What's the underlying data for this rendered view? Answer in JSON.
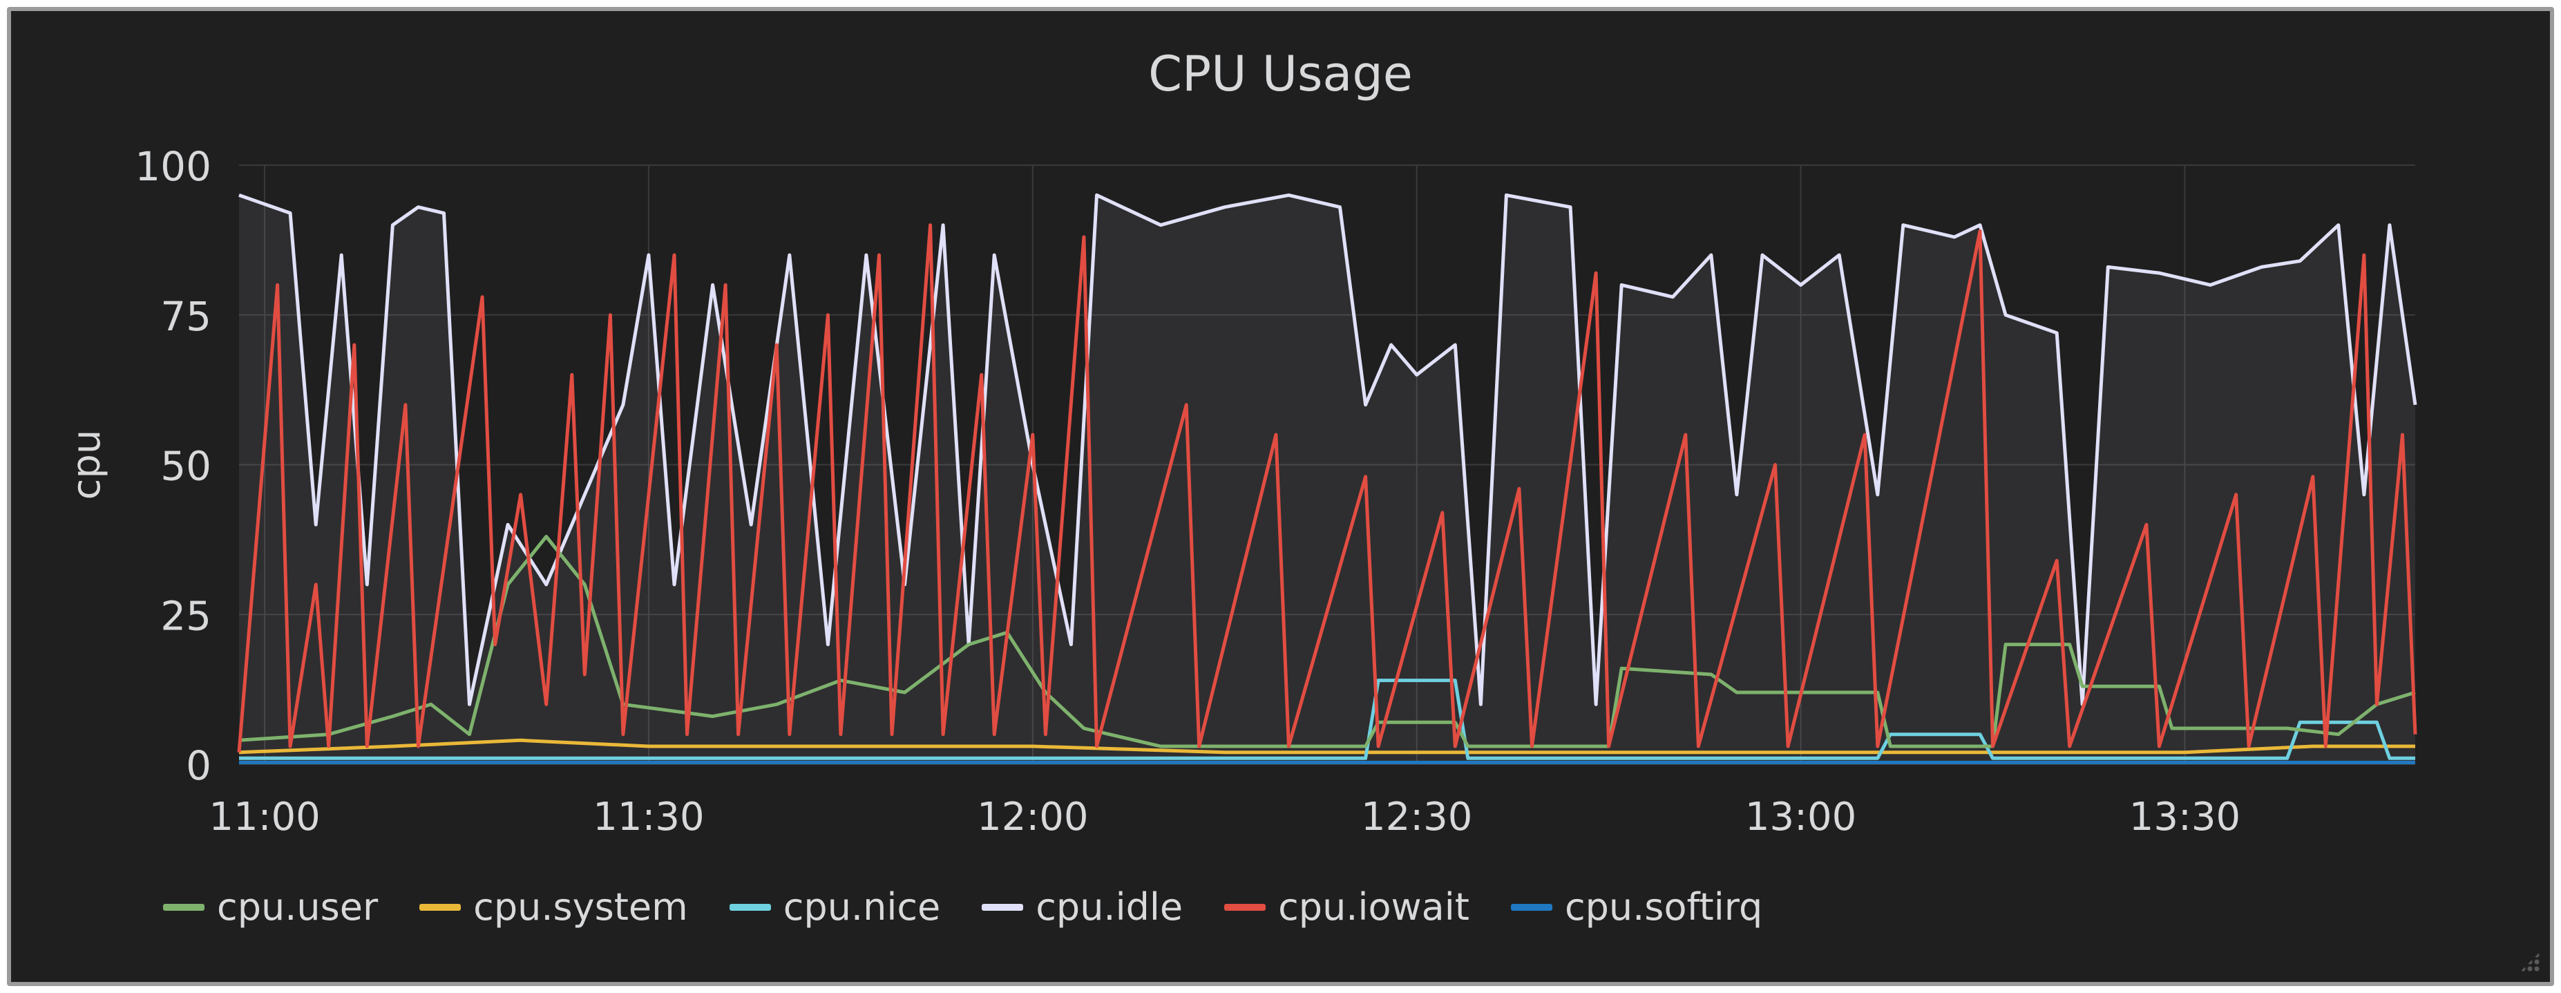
{
  "chart_data": {
    "type": "line",
    "title": "CPU Usage",
    "ylabel": "cpu",
    "xlabel": "",
    "ylim": [
      0,
      100
    ],
    "yticks": [
      "0",
      "25",
      "50",
      "75",
      "100"
    ],
    "xlim": [
      "10:58",
      "13:48"
    ],
    "xticks": [
      "11:00",
      "11:30",
      "12:00",
      "12:30",
      "13:00",
      "13:30"
    ],
    "grid": true,
    "legend_position": "bottom",
    "series": [
      {
        "name": "cpu.user",
        "color": "#7eb26d",
        "points": [
          [
            "10:58",
            4
          ],
          [
            "11:05",
            5
          ],
          [
            "11:10",
            8
          ],
          [
            "11:13",
            10
          ],
          [
            "11:16",
            5
          ],
          [
            "11:19",
            30
          ],
          [
            "11:22",
            38
          ],
          [
            "11:25",
            30
          ],
          [
            "11:28",
            10
          ],
          [
            "11:35",
            8
          ],
          [
            "11:40",
            10
          ],
          [
            "11:45",
            14
          ],
          [
            "11:50",
            12
          ],
          [
            "11:55",
            20
          ],
          [
            "11:58",
            22
          ],
          [
            "12:01",
            12
          ],
          [
            "12:04",
            6
          ],
          [
            "12:10",
            3
          ],
          [
            "12:20",
            3
          ],
          [
            "12:26",
            3
          ],
          [
            "12:27",
            7
          ],
          [
            "12:33",
            7
          ],
          [
            "12:34",
            3
          ],
          [
            "12:45",
            3
          ],
          [
            "12:46",
            16
          ],
          [
            "12:53",
            15
          ],
          [
            "12:55",
            12
          ],
          [
            "13:06",
            12
          ],
          [
            "13:07",
            3
          ],
          [
            "13:15",
            3
          ],
          [
            "13:16",
            20
          ],
          [
            "13:21",
            20
          ],
          [
            "13:22",
            13
          ],
          [
            "13:28",
            13
          ],
          [
            "13:29",
            6
          ],
          [
            "13:38",
            6
          ],
          [
            "13:42",
            5
          ],
          [
            "13:45",
            10
          ],
          [
            "13:48",
            12
          ]
        ]
      },
      {
        "name": "cpu.system",
        "color": "#eab839",
        "points": [
          [
            "10:58",
            2
          ],
          [
            "11:10",
            3
          ],
          [
            "11:20",
            4
          ],
          [
            "11:30",
            3
          ],
          [
            "11:45",
            3
          ],
          [
            "12:00",
            3
          ],
          [
            "12:15",
            2
          ],
          [
            "12:30",
            2
          ],
          [
            "12:45",
            2
          ],
          [
            "13:00",
            2
          ],
          [
            "13:15",
            2
          ],
          [
            "13:30",
            2
          ],
          [
            "13:40",
            3
          ],
          [
            "13:48",
            3
          ]
        ]
      },
      {
        "name": "cpu.nice",
        "color": "#6ed0e0",
        "points": [
          [
            "10:58",
            1
          ],
          [
            "12:26",
            1
          ],
          [
            "12:27",
            14
          ],
          [
            "12:33",
            14
          ],
          [
            "12:34",
            1
          ],
          [
            "13:06",
            1
          ],
          [
            "13:07",
            5
          ],
          [
            "13:14",
            5
          ],
          [
            "13:15",
            1
          ],
          [
            "13:38",
            1
          ],
          [
            "13:39",
            7
          ],
          [
            "13:45",
            7
          ],
          [
            "13:46",
            1
          ],
          [
            "13:48",
            1
          ]
        ]
      },
      {
        "name": "cpu.idle",
        "color": "#e0e0f8",
        "points": [
          [
            "10:58",
            95
          ],
          [
            "11:02",
            92
          ],
          [
            "11:04",
            40
          ],
          [
            "11:06",
            85
          ],
          [
            "11:08",
            30
          ],
          [
            "11:10",
            90
          ],
          [
            "11:12",
            93
          ],
          [
            "11:14",
            92
          ],
          [
            "11:16",
            10
          ],
          [
            "11:19",
            40
          ],
          [
            "11:22",
            30
          ],
          [
            "11:25",
            45
          ],
          [
            "11:28",
            60
          ],
          [
            "11:30",
            85
          ],
          [
            "11:32",
            30
          ],
          [
            "11:35",
            80
          ],
          [
            "11:38",
            40
          ],
          [
            "11:41",
            85
          ],
          [
            "11:44",
            20
          ],
          [
            "11:47",
            85
          ],
          [
            "11:50",
            30
          ],
          [
            "11:53",
            90
          ],
          [
            "11:55",
            20
          ],
          [
            "11:57",
            85
          ],
          [
            "12:00",
            50
          ],
          [
            "12:03",
            20
          ],
          [
            "12:05",
            95
          ],
          [
            "12:10",
            90
          ],
          [
            "12:15",
            93
          ],
          [
            "12:20",
            95
          ],
          [
            "12:24",
            93
          ],
          [
            "12:26",
            60
          ],
          [
            "12:28",
            70
          ],
          [
            "12:30",
            65
          ],
          [
            "12:33",
            70
          ],
          [
            "12:35",
            10
          ],
          [
            "12:37",
            95
          ],
          [
            "12:42",
            93
          ],
          [
            "12:44",
            10
          ],
          [
            "12:46",
            80
          ],
          [
            "12:50",
            78
          ],
          [
            "12:53",
            85
          ],
          [
            "12:55",
            45
          ],
          [
            "12:57",
            85
          ],
          [
            "13:00",
            80
          ],
          [
            "13:03",
            85
          ],
          [
            "13:06",
            45
          ],
          [
            "13:08",
            90
          ],
          [
            "13:12",
            88
          ],
          [
            "13:14",
            90
          ],
          [
            "13:16",
            75
          ],
          [
            "13:20",
            72
          ],
          [
            "13:22",
            10
          ],
          [
            "13:24",
            83
          ],
          [
            "13:28",
            82
          ],
          [
            "13:32",
            80
          ],
          [
            "13:36",
            83
          ],
          [
            "13:39",
            84
          ],
          [
            "13:42",
            90
          ],
          [
            "13:44",
            45
          ],
          [
            "13:46",
            90
          ],
          [
            "13:48",
            60
          ]
        ]
      },
      {
        "name": "cpu.iowait",
        "color": "#e24d42",
        "points": [
          [
            "10:58",
            2
          ],
          [
            "11:01",
            80
          ],
          [
            "11:02",
            3
          ],
          [
            "11:04",
            30
          ],
          [
            "11:05",
            3
          ],
          [
            "11:07",
            70
          ],
          [
            "11:08",
            3
          ],
          [
            "11:11",
            60
          ],
          [
            "11:12",
            3
          ],
          [
            "11:17",
            78
          ],
          [
            "11:18",
            20
          ],
          [
            "11:20",
            45
          ],
          [
            "11:22",
            10
          ],
          [
            "11:24",
            65
          ],
          [
            "11:25",
            15
          ],
          [
            "11:27",
            75
          ],
          [
            "11:28",
            5
          ],
          [
            "11:32",
            85
          ],
          [
            "11:33",
            5
          ],
          [
            "11:36",
            80
          ],
          [
            "11:37",
            5
          ],
          [
            "11:40",
            70
          ],
          [
            "11:41",
            5
          ],
          [
            "11:44",
            75
          ],
          [
            "11:45",
            5
          ],
          [
            "11:48",
            85
          ],
          [
            "11:49",
            5
          ],
          [
            "11:52",
            90
          ],
          [
            "11:53",
            5
          ],
          [
            "11:56",
            65
          ],
          [
            "11:57",
            5
          ],
          [
            "12:00",
            55
          ],
          [
            "12:01",
            5
          ],
          [
            "12:04",
            88
          ],
          [
            "12:05",
            3
          ],
          [
            "12:12",
            60
          ],
          [
            "12:13",
            3
          ],
          [
            "12:19",
            55
          ],
          [
            "12:20",
            3
          ],
          [
            "12:26",
            48
          ],
          [
            "12:27",
            3
          ],
          [
            "12:32",
            42
          ],
          [
            "12:33",
            3
          ],
          [
            "12:38",
            46
          ],
          [
            "12:39",
            3
          ],
          [
            "12:44",
            82
          ],
          [
            "12:45",
            3
          ],
          [
            "12:51",
            55
          ],
          [
            "12:52",
            3
          ],
          [
            "12:58",
            50
          ],
          [
            "12:59",
            3
          ],
          [
            "13:05",
            55
          ],
          [
            "13:06",
            3
          ],
          [
            "13:14",
            89
          ],
          [
            "13:15",
            3
          ],
          [
            "13:20",
            34
          ],
          [
            "13:21",
            3
          ],
          [
            "13:27",
            40
          ],
          [
            "13:28",
            3
          ],
          [
            "13:34",
            45
          ],
          [
            "13:35",
            3
          ],
          [
            "13:40",
            48
          ],
          [
            "13:41",
            3
          ],
          [
            "13:44",
            85
          ],
          [
            "13:45",
            10
          ],
          [
            "13:47",
            55
          ],
          [
            "13:48",
            5
          ]
        ]
      },
      {
        "name": "cpu.softirq",
        "color": "#1f78c1",
        "points": [
          [
            "10:58",
            0.3
          ],
          [
            "13:48",
            0.3
          ]
        ]
      }
    ]
  }
}
